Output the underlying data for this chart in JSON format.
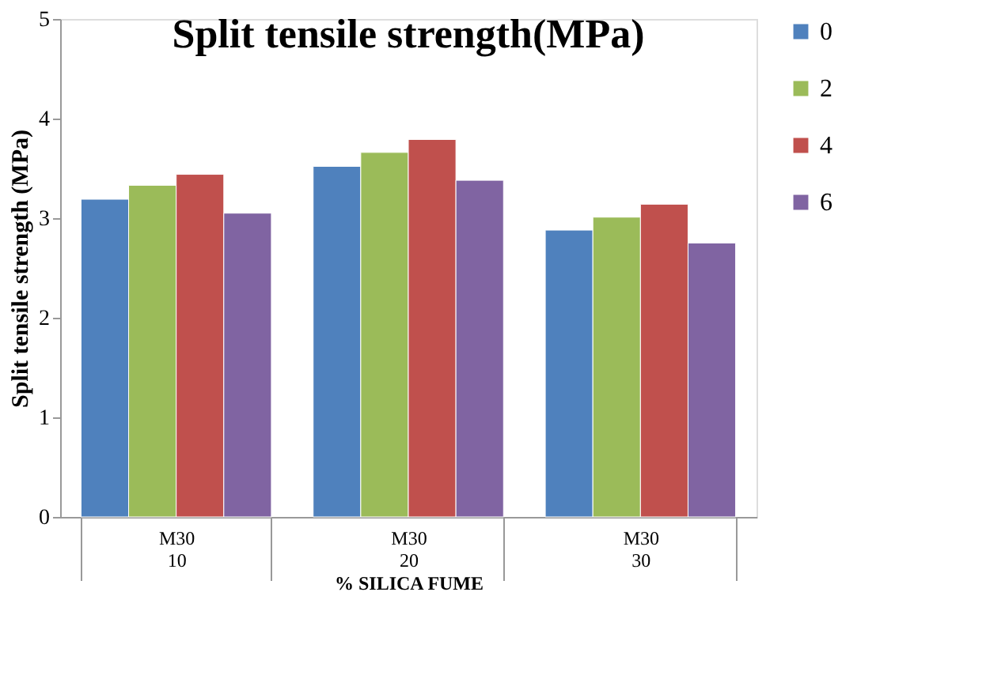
{
  "chart_data": {
    "type": "bar",
    "title": "Split tensile strength(MPa)",
    "xlabel": "% SILICA FUME",
    "ylabel": "Split tensile  strength (MPa)",
    "categories": [
      "M30\n10",
      "M30\n20",
      "M30\n30"
    ],
    "series": [
      {
        "name": "0",
        "color": "#4f81bd",
        "values": [
          3.19,
          3.52,
          2.88
        ]
      },
      {
        "name": "2",
        "color": "#9bbb59",
        "values": [
          3.33,
          3.66,
          3.01
        ]
      },
      {
        "name": "4",
        "color": "#c0504d",
        "values": [
          3.44,
          3.79,
          3.14
        ]
      },
      {
        "name": "6",
        "color": "#8064a2",
        "values": [
          3.05,
          3.38,
          2.75
        ]
      }
    ],
    "ylim": [
      0,
      5
    ],
    "yticks": [
      0,
      1,
      2,
      3,
      4,
      5
    ],
    "grid": false,
    "legend": "right"
  }
}
